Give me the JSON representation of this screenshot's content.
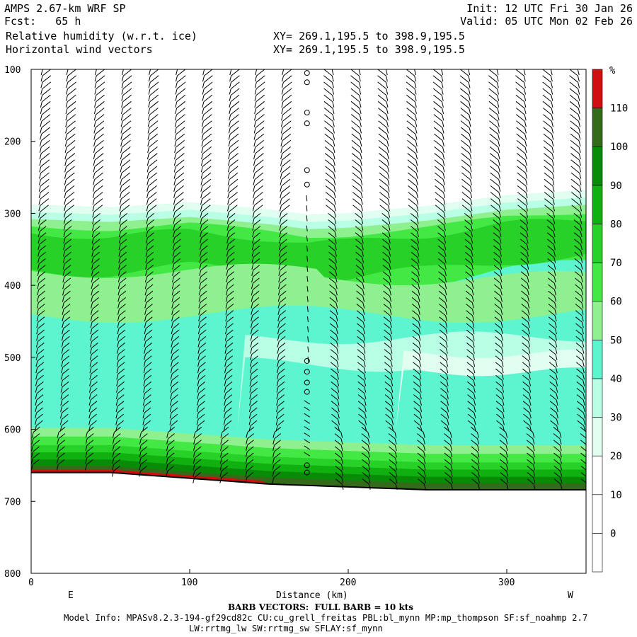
{
  "header": {
    "model_title": "AMPS 2.67-km WRF SP",
    "fcst_label": "Fcst:   65 h",
    "init_label": "Init: 12 UTC Fri 30 Jan 26",
    "valid_label": "Valid: 05 UTC Mon 02 Feb 26",
    "field1": "Relative humidity (w.r.t. ice)",
    "field2": "Horizontal wind vectors",
    "xy1": "XY= 269.1,195.5 to 398.9,195.5",
    "xy2": "XY= 269.1,195.5 to 398.9,195.5"
  },
  "footer": {
    "barb_note": "BARB VECTORS:  FULL BARB = 10 kts",
    "model_info": "Model Info: MPASv8.2.3-194-gf29cd82c CU:cu_grell_freitas PBL:bl_mynn MP:mp_thompson SF:sf_noahmp 2.7",
    "model_info2": "LW:rrtmg_lw SW:rrtmg_sw SFLAY:sf_mynn"
  },
  "colors": {
    "c20_30": "#e0fff0",
    "c30_40": "#b9ffe6",
    "c40_50": "#5cf5d0",
    "c50_60": "#8ff08f",
    "c60_70": "#44e844",
    "c70_80": "#27d127",
    "c80_90": "#0fb00f",
    "c90_100": "#088c08",
    "c100_110": "#336b1a",
    "c110_plus": "#d01010",
    "terrain": "#000000",
    "barb": "#000000"
  },
  "chart_data": {
    "type": "heatmap",
    "title": "Relative humidity (w.r.t. ice)",
    "xlabel": "Distance (km)",
    "ylabel": "",
    "x_range": [
      0,
      350
    ],
    "y_range": [
      100,
      800
    ],
    "y_axis_inverted": true,
    "x_ticks": [
      0,
      100,
      200,
      300
    ],
    "y_ticks": [
      100,
      200,
      300,
      400,
      500,
      600,
      700,
      800
    ],
    "x_endpoints": [
      "E",
      "W"
    ],
    "colorbar": {
      "unit": "%",
      "levels": [
        0,
        10,
        20,
        30,
        40,
        50,
        60,
        70,
        80,
        90,
        100,
        110
      ]
    },
    "terrain_surface": {
      "x": [
        0,
        50,
        100,
        150,
        175,
        200,
        250,
        300,
        350
      ],
      "pressure": [
        660,
        660,
        668,
        676,
        678,
        680,
        684,
        684,
        684
      ]
    },
    "moist_layer": {
      "x": [
        0,
        50,
        100,
        150,
        175,
        200,
        250,
        300,
        350
      ],
      "top_pressure": [
        288,
        292,
        285,
        295,
        302,
        300,
        290,
        275,
        268
      ]
    },
    "wind_barb_columns_x_km": [
      5,
      21,
      39,
      56,
      73,
      90,
      107,
      124,
      140,
      157,
      174,
      192,
      209,
      226,
      244,
      261,
      278,
      296,
      313,
      330,
      347
    ],
    "calm_column_x_km": 174
  }
}
